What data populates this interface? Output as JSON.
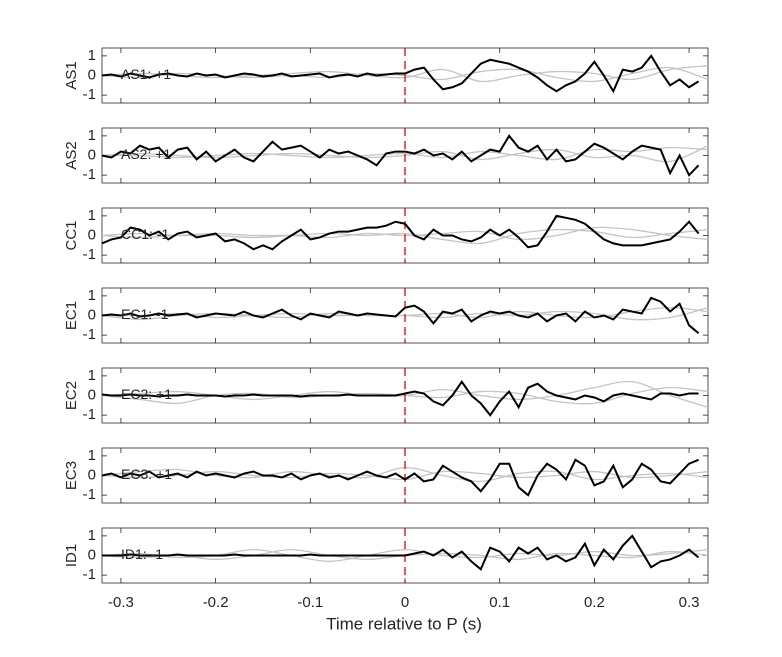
{
  "chart_data": {
    "type": "line",
    "xlabel": "Time relative to P (s)",
    "xlim": [
      -0.32,
      0.32
    ],
    "xticks": [
      -0.3,
      -0.2,
      -0.1,
      0,
      0.1,
      0.2,
      0.3
    ],
    "ylim": [
      -1.4,
      1.4
    ],
    "yticks": [
      -1,
      0,
      1
    ],
    "vline_x": 0,
    "vline_color": "#e8000b",
    "color": "#000000",
    "gray_color": "#c4c4c4",
    "x": [
      -0.32,
      -0.31,
      -0.3,
      -0.29,
      -0.28,
      -0.27,
      -0.26,
      -0.25,
      -0.24,
      -0.23,
      -0.22,
      -0.21,
      -0.2,
      -0.19,
      -0.18,
      -0.17,
      -0.16,
      -0.15,
      -0.14,
      -0.13,
      -0.12,
      -0.11,
      -0.1,
      -0.09,
      -0.08,
      -0.07,
      -0.06,
      -0.05,
      -0.04,
      -0.03,
      -0.02,
      -0.01,
      0,
      0.01,
      0.02,
      0.03,
      0.04,
      0.05,
      0.06,
      0.07,
      0.08,
      0.09,
      0.1,
      0.11,
      0.12,
      0.13,
      0.14,
      0.15,
      0.16,
      0.17,
      0.18,
      0.19,
      0.2,
      0.21,
      0.22,
      0.23,
      0.24,
      0.25,
      0.26,
      0.27,
      0.28,
      0.29,
      0.3,
      0.31
    ],
    "gray_x": [
      -0.32,
      -0.28,
      -0.24,
      -0.2,
      -0.16,
      -0.12,
      -0.08,
      -0.04,
      0,
      0.04,
      0.08,
      0.12,
      0.16,
      0.2,
      0.24,
      0.28,
      0.32
    ],
    "panels": [
      {
        "ylabel": "AS1",
        "label": "AS1: +1",
        "label_color": "#c00000",
        "values": [
          0,
          0.05,
          -0.05,
          0.1,
          0,
          -0.1,
          0.05,
          0.1,
          0,
          -0.05,
          0.1,
          0,
          0.05,
          -0.1,
          0,
          0.1,
          0.05,
          -0.05,
          0,
          0.1,
          -0.05,
          0,
          0.05,
          0.1,
          -0.1,
          0,
          0.05,
          -0.05,
          0.1,
          0,
          0.05,
          0.1,
          0.1,
          0.3,
          0.4,
          -0.2,
          -0.7,
          -0.6,
          -0.4,
          0.1,
          0.6,
          0.8,
          0.7,
          0.6,
          0.4,
          0.2,
          -0.1,
          -0.5,
          -0.8,
          -0.5,
          -0.3,
          0.1,
          0.7,
          0,
          -0.8,
          0.3,
          0.2,
          0.4,
          1.0,
          0.2,
          -0.5,
          -0.2,
          -0.6,
          -0.3
        ],
        "gray": [
          [
            0,
            0.1,
            0,
            -0.1,
            0,
            0.1,
            0.2,
            0,
            -0.1,
            0.3,
            -0.3,
            0,
            0.2,
            0.1,
            -0.2,
            0.3,
            0.5
          ],
          [
            0,
            -0.1,
            0.1,
            0,
            -0.1,
            0,
            -0.1,
            0.1,
            0,
            -0.2,
            0.2,
            0.3,
            -0.1,
            -0.3,
            0.1,
            0.4,
            -0.2
          ]
        ]
      },
      {
        "ylabel": "AS2",
        "label": "AS2: +1",
        "label_color": "#c00000",
        "values": [
          0,
          -0.1,
          0.2,
          0.1,
          0.5,
          0.3,
          0.4,
          -0.1,
          0.3,
          0.4,
          -0.2,
          0.2,
          -0.3,
          0,
          0.3,
          -0.1,
          -0.3,
          0.2,
          0.7,
          0.3,
          0.4,
          0.5,
          0.2,
          -0.1,
          0.3,
          0.1,
          0.2,
          0,
          -0.2,
          -0.5,
          0.1,
          0.2,
          0.2,
          0.1,
          0.3,
          0,
          0.1,
          -0.2,
          0.2,
          -0.3,
          0,
          0.3,
          0.2,
          1.0,
          0.4,
          0.2,
          0.5,
          -0.2,
          0.3,
          -0.3,
          -0.2,
          0.2,
          0.6,
          0.4,
          0.1,
          -0.2,
          0.2,
          0.5,
          0.4,
          0.3,
          -0.9,
          0,
          -1.0,
          -0.5
        ],
        "gray": [
          [
            0,
            0,
            -0.1,
            0,
            0.1,
            0,
            -0.1,
            0,
            0.1,
            -0.1,
            0.2,
            0,
            -0.2,
            0.3,
            0.2,
            0.4,
            0.3
          ],
          [
            0,
            0.1,
            0,
            -0.1,
            0,
            0.1,
            0,
            -0.1,
            0,
            0.2,
            -0.2,
            0.1,
            0.3,
            -0.1,
            0,
            -0.3,
            0.5
          ]
        ]
      },
      {
        "ylabel": "CC1",
        "label": "CC1: -1",
        "label_color": "#0000b0",
        "values": [
          -0.4,
          -0.2,
          -0.1,
          0.4,
          0.3,
          0,
          0.2,
          -0.2,
          0.1,
          0.2,
          -0.1,
          0,
          0.1,
          -0.3,
          -0.2,
          -0.4,
          -0.7,
          -0.5,
          -0.7,
          -0.3,
          0,
          0.3,
          -0.2,
          -0.1,
          0.1,
          0.2,
          0.2,
          0.3,
          0.4,
          0.4,
          0.5,
          0.7,
          0.6,
          0,
          -0.2,
          0.3,
          0,
          0,
          -0.2,
          -0.3,
          -0.1,
          0.3,
          0,
          0.3,
          -0.1,
          -0.6,
          -0.5,
          0.2,
          1.0,
          0.9,
          0.8,
          0.6,
          0.2,
          -0.2,
          -0.4,
          -0.5,
          -0.5,
          -0.5,
          -0.4,
          -0.3,
          -0.2,
          0.2,
          0.7,
          0.1
        ],
        "gray": [
          [
            0,
            0.1,
            0,
            0,
            -0.1,
            0,
            0.1,
            0,
            0.1,
            -0.2,
            -0.4,
            0.1,
            0.3,
            0.2,
            -0.1,
            0.1,
            0.3
          ],
          [
            0,
            -0.1,
            0,
            0.1,
            0,
            0,
            -0.1,
            0.1,
            0,
            0.1,
            0.2,
            -0.2,
            0,
            0.4,
            0.3,
            0,
            -0.2
          ]
        ]
      },
      {
        "ylabel": "EC1",
        "label": "EC1: -1",
        "label_color": "#0000b0",
        "values": [
          0,
          0.05,
          0,
          0.1,
          -0.05,
          0,
          0.1,
          0,
          0.05,
          0.1,
          -0.1,
          0,
          0.1,
          0.05,
          0,
          0.2,
          0,
          -0.1,
          0.1,
          0.3,
          0,
          -0.2,
          0.1,
          0,
          -0.1,
          0.2,
          0.1,
          0,
          0.1,
          0.05,
          0,
          -0.05,
          0.4,
          0.5,
          0.2,
          -0.4,
          0.2,
          0.1,
          0.3,
          -0.3,
          0,
          0.2,
          0.1,
          0.2,
          0,
          -0.1,
          0.1,
          -0.3,
          0,
          0.1,
          -0.3,
          0.2,
          -0.1,
          0,
          -0.2,
          0.3,
          0.2,
          0.1,
          0.9,
          0.7,
          0.2,
          0.6,
          -0.5,
          -0.9
        ],
        "gray": [
          [
            0,
            0,
            0.1,
            -0.1,
            0,
            0.1,
            0,
            0,
            0,
            0.1,
            -0.1,
            0.2,
            0,
            -0.1,
            0.2,
            0.4,
            0.2
          ],
          [
            0,
            -0.2,
            0,
            0.1,
            0,
            -0.1,
            0.1,
            0,
            0,
            -0.1,
            0.1,
            0,
            0.2,
            0.1,
            -0.2,
            -0.1,
            0.4
          ]
        ]
      },
      {
        "ylabel": "EC2",
        "label": "EC2: +1",
        "label_color": "#c00000",
        "values": [
          0.05,
          0,
          0,
          0.05,
          0,
          0,
          -0.05,
          0,
          0,
          0.05,
          0,
          0,
          0,
          -0.05,
          0,
          0,
          0.05,
          0,
          0,
          0,
          0,
          -0.05,
          0,
          0,
          0,
          0,
          0.05,
          0,
          0,
          0,
          0,
          0,
          0.1,
          0.2,
          0.1,
          -0.3,
          -0.5,
          0,
          0.7,
          0,
          -0.4,
          -1.0,
          -0.3,
          0.2,
          -0.6,
          0.4,
          0.6,
          0.2,
          0,
          -0.1,
          -0.2,
          0,
          -0.1,
          -0.3,
          0,
          0.1,
          0,
          -0.1,
          -0.2,
          0.1,
          0.1,
          0,
          0.1,
          0.1
        ],
        "gray": [
          [
            0,
            0.1,
            0.2,
            0,
            -0.2,
            0,
            0.2,
            0,
            0,
            0.3,
            0,
            -0.2,
            0,
            0.4,
            0.7,
            0,
            -0.6
          ],
          [
            0,
            -0.2,
            -0.4,
            0,
            0.1,
            -0.1,
            0,
            0.1,
            0,
            -0.1,
            0.2,
            0.1,
            -0.3,
            -0.4,
            0.1,
            0.4,
            0.2
          ]
        ]
      },
      {
        "ylabel": "EC3",
        "label": "EC3: +1",
        "label_color": "#c00000",
        "values": [
          0,
          0.1,
          -0.1,
          0.1,
          0,
          0.2,
          -0.1,
          0,
          0.1,
          -0.1,
          0.2,
          0,
          0.1,
          0,
          -0.1,
          0.1,
          0.2,
          0,
          0,
          -0.1,
          0.1,
          -0.2,
          0,
          0.1,
          -0.1,
          0,
          -0.2,
          0,
          0.2,
          0,
          -0.1,
          0.1,
          -0.2,
          0.1,
          -0.3,
          -0.2,
          0.5,
          0.2,
          -0.1,
          -0.3,
          -0.8,
          -0.2,
          0.6,
          0.6,
          -0.6,
          -1.0,
          0,
          0.6,
          0.3,
          -0.2,
          0.8,
          0.5,
          -0.5,
          -0.3,
          0.5,
          -0.6,
          -0.2,
          0.6,
          0.3,
          -0.3,
          -0.4,
          0.1,
          0.6,
          0.8
        ],
        "gray": [
          [
            0,
            0.2,
            0.3,
            0,
            -0.1,
            0.2,
            0,
            -0.1,
            0.4,
            0,
            -0.3,
            0.1,
            0.2,
            -0.2,
            0,
            0.1,
            -0.1
          ],
          [
            0,
            -0.1,
            0,
            0.2,
            0,
            -0.1,
            0.1,
            0,
            -0.2,
            0.2,
            0.1,
            -0.1,
            0,
            0.2,
            -0.1,
            0,
            0.2
          ]
        ]
      },
      {
        "ylabel": "ID1",
        "label": "ID1: -1",
        "label_color": "#0000b0",
        "values": [
          0,
          0,
          0,
          0.05,
          0,
          0,
          0,
          0,
          0.05,
          0,
          0,
          0,
          0,
          0,
          0.05,
          0,
          0,
          0,
          0,
          0,
          0,
          0,
          0.05,
          0,
          0,
          0,
          0,
          0,
          0,
          0,
          0,
          0,
          0,
          0.1,
          0.2,
          0,
          0.3,
          -0.1,
          0.2,
          -0.3,
          -0.7,
          0.4,
          0.2,
          -0.3,
          0.4,
          0.1,
          0.4,
          -0.2,
          0,
          -0.3,
          -0.1,
          0.6,
          -0.5,
          0.3,
          -0.2,
          0.5,
          1.0,
          0.2,
          -0.6,
          -0.3,
          -0.2,
          0,
          0.3,
          -0.1
        ],
        "gray": [
          [
            0,
            0.1,
            -0.1,
            0,
            0.3,
            0,
            -0.3,
            0,
            0.3,
            0,
            -0.1,
            0.1,
            0,
            0.2,
            0,
            0.1,
            0.3
          ],
          [
            0,
            -0.1,
            0,
            -0.2,
            0,
            0.3,
            0,
            -0.2,
            0,
            0.1,
            0,
            -0.2,
            0.1,
            0,
            -0.1,
            0.2,
            0
          ]
        ]
      }
    ]
  }
}
